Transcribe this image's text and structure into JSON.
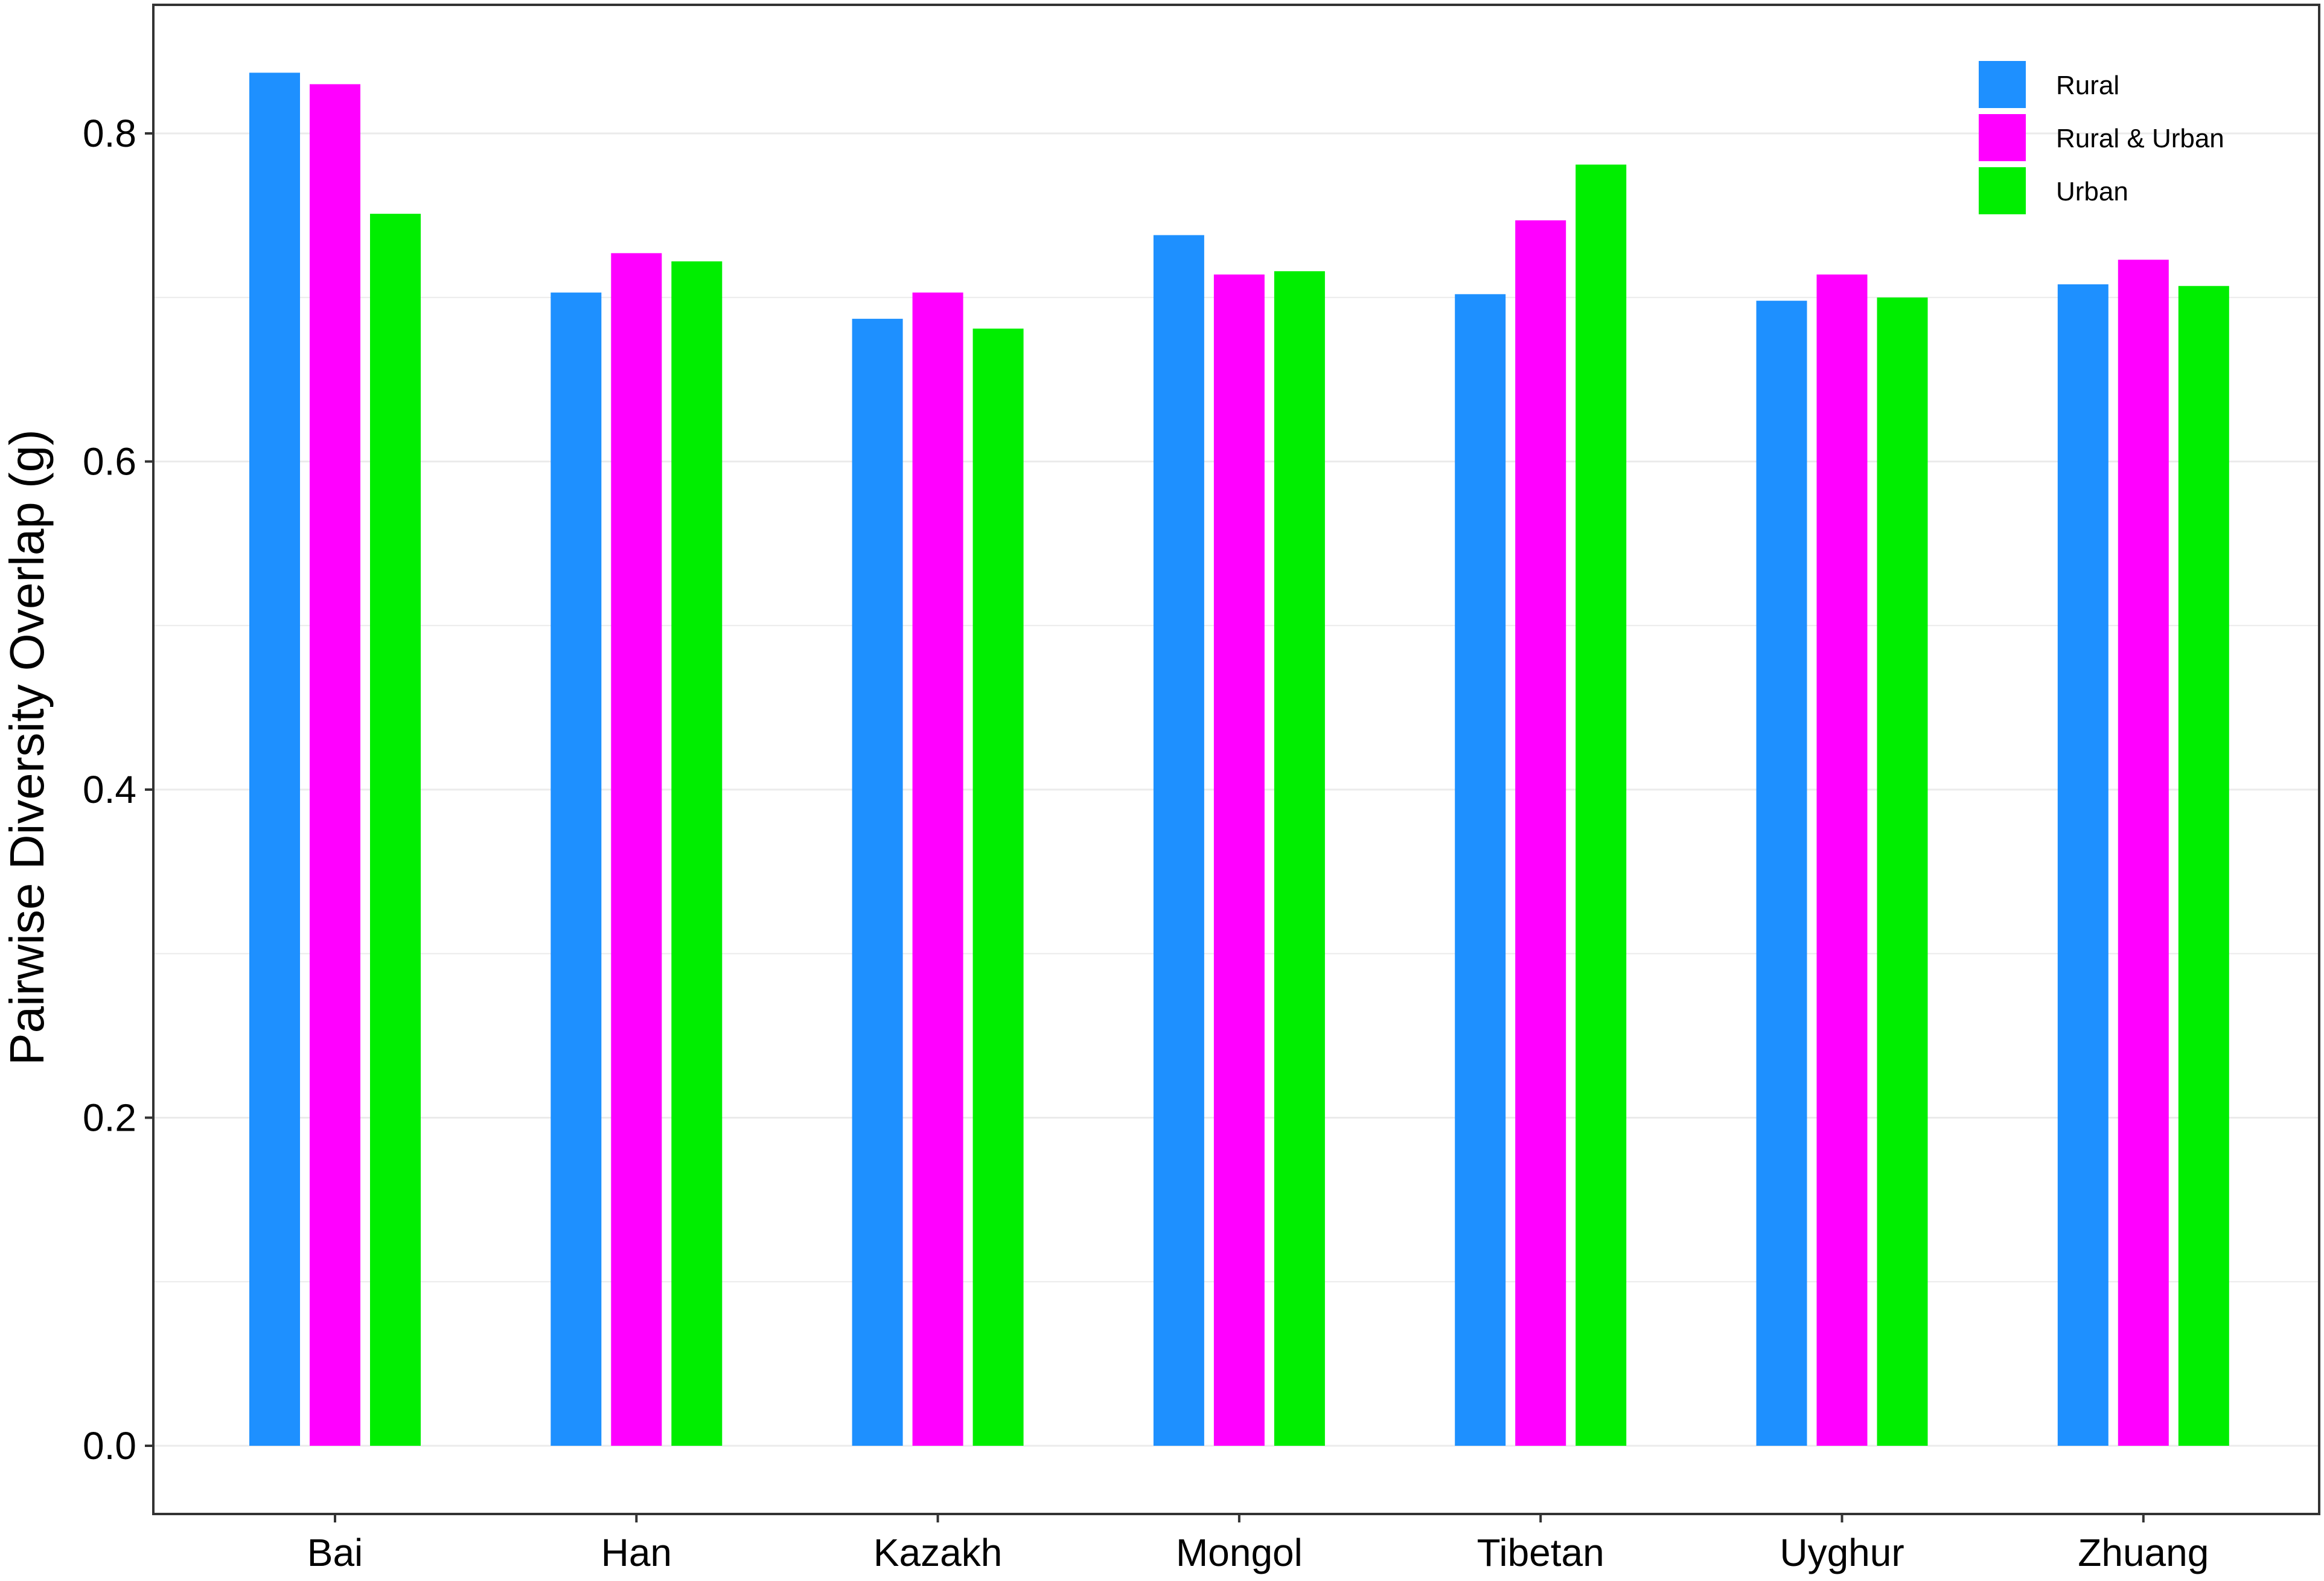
{
  "chart_data": {
    "type": "bar",
    "title": "",
    "xlabel": "",
    "ylabel": "Pairwise Diversity Overlap (g)",
    "categories": [
      "Bai",
      "Han",
      "Kazakh",
      "Mongol",
      "Tibetan",
      "Uyghur",
      "Zhuang"
    ],
    "series": [
      {
        "name": "Rural",
        "color": "#1E90FF",
        "values": [
          0.837,
          0.703,
          0.687,
          0.738,
          0.702,
          0.698,
          0.708
        ]
      },
      {
        "name": "Rural & Urban",
        "color": "#FF00FF",
        "values": [
          0.83,
          0.727,
          0.703,
          0.714,
          0.747,
          0.714,
          0.723
        ]
      },
      {
        "name": "Urban",
        "color": "#00EE00",
        "values": [
          0.751,
          0.722,
          0.681,
          0.716,
          0.781,
          0.7,
          0.707
        ]
      }
    ],
    "ylim": [
      -0.04,
      0.88
    ],
    "yticks": [
      0.0,
      0.2,
      0.4,
      0.6,
      0.8
    ],
    "ytick_labels": [
      "0.0",
      "0.2",
      "0.4",
      "0.6",
      "0.8"
    ],
    "grid": true,
    "legend_position": "top-right"
  }
}
